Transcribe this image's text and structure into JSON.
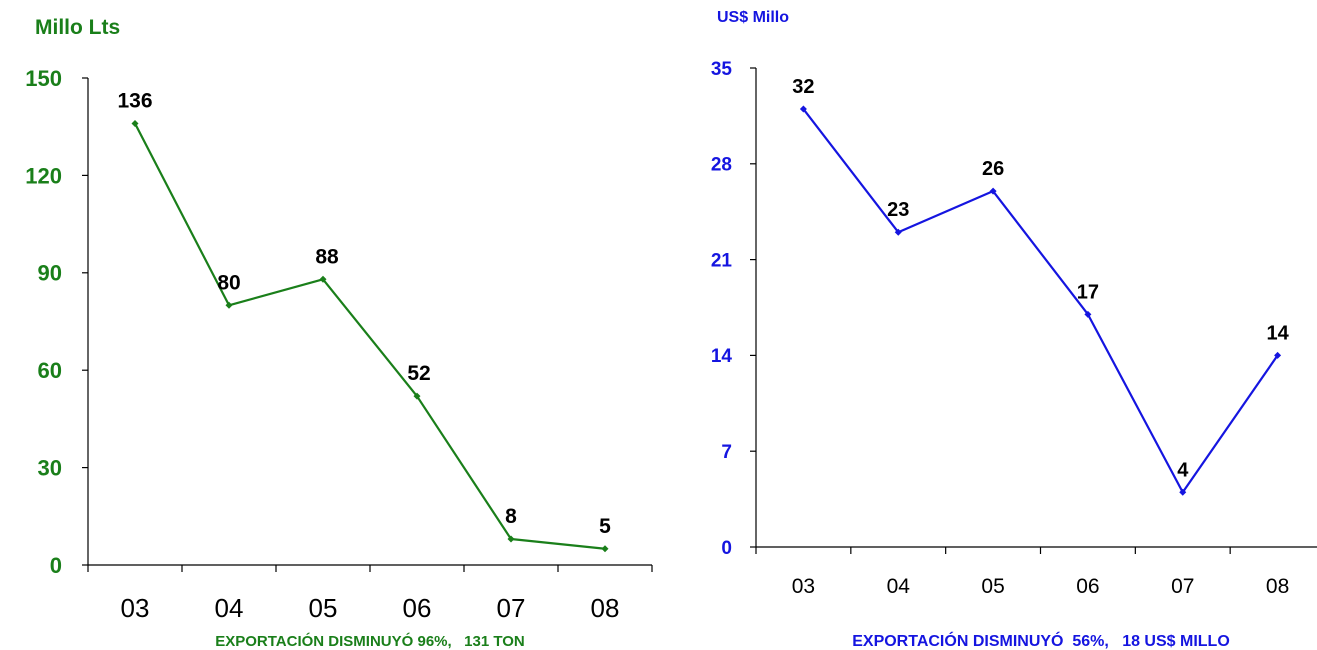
{
  "chart_data": [
    {
      "type": "line",
      "ylabel": "Millo Lts",
      "categories": [
        "03",
        "04",
        "05",
        "06",
        "07",
        "08"
      ],
      "series": [
        {
          "values": [
            136,
            80,
            88,
            52,
            8,
            5
          ]
        }
      ],
      "data_labels": [
        "136",
        "80",
        "88",
        "52",
        "8",
        "5"
      ],
      "ylim": [
        0,
        150
      ],
      "yticks": [
        0,
        30,
        60,
        90,
        120,
        150
      ],
      "ytick_labels": [
        "0",
        "30",
        "60",
        "90",
        "120",
        "150"
      ],
      "caption": "EXPORTACIÓN DISMINUYÓ 96%,   131 TON",
      "color": "#1a7f1a",
      "grid": false
    },
    {
      "type": "line",
      "ylabel": "US$ Millo",
      "categories": [
        "03",
        "04",
        "05",
        "06",
        "07",
        "08"
      ],
      "series": [
        {
          "values": [
            32,
            23,
            26,
            17,
            4,
            14
          ]
        }
      ],
      "data_labels": [
        "32",
        "23",
        "26",
        "17",
        "4",
        "14"
      ],
      "ylim": [
        0,
        35
      ],
      "yticks": [
        0,
        7,
        14,
        21,
        28,
        35
      ],
      "ytick_labels": [
        "0",
        "7",
        "14",
        "21",
        "28",
        "35"
      ],
      "caption": "EXPORTACIÓN DISMINUYÓ  56%,   18 US$ MILLO",
      "color": "#1515e0",
      "grid": false
    }
  ]
}
